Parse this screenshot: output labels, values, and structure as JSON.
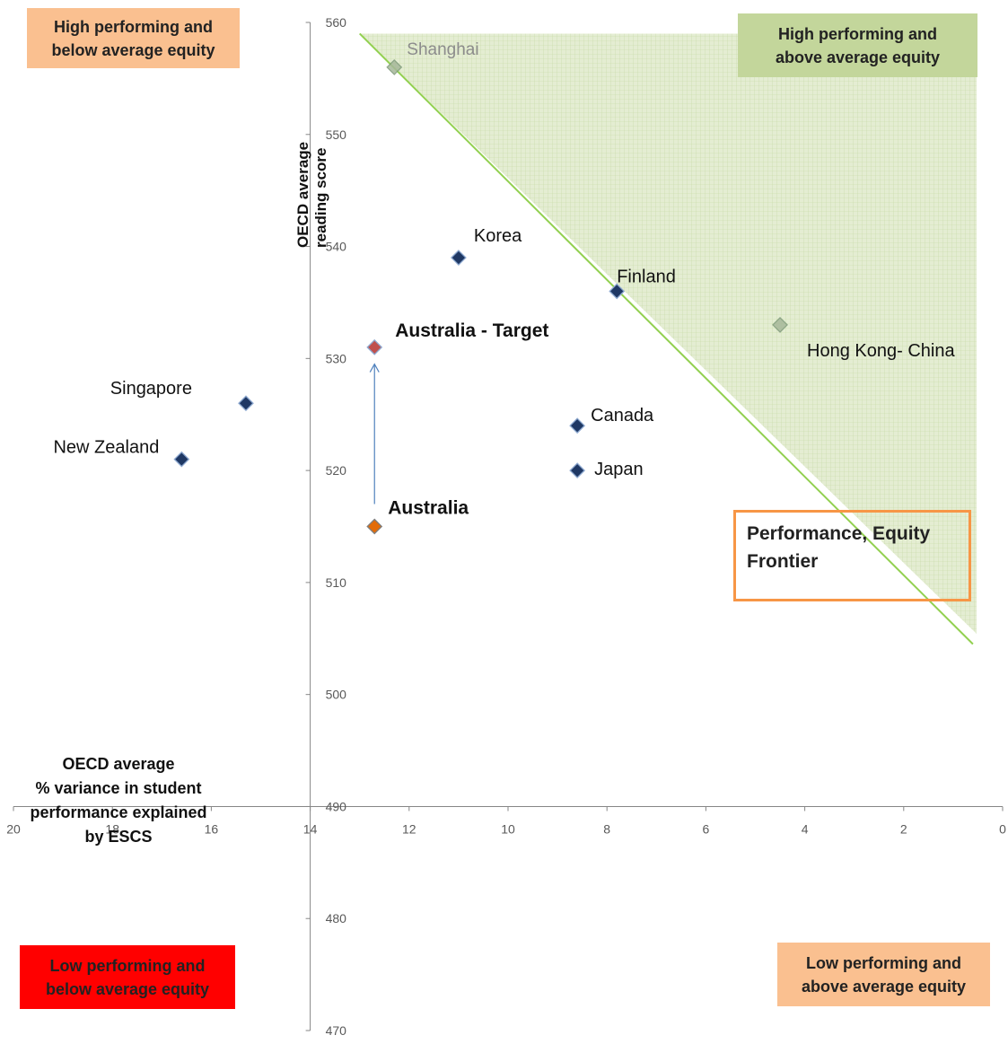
{
  "quadrants": {
    "top_left": "High performing and\nbelow average equity",
    "top_right": "High performing and\nabove average equity",
    "bottom_left": "Low performing and\nbelow average equity",
    "bottom_right": "Low performing and\nabove average equity"
  },
  "frontier_label": "Performance, Equity\nFrontier",
  "colors": {
    "point": "#1f3864",
    "australia": "#e36c09",
    "australia_target": "#c0504d",
    "frontier_line": "#92d050",
    "region_fill": "#d7e4bd",
    "frontier_box_border": "#f79646",
    "arrow": "#4f81bd"
  },
  "chart_data": {
    "type": "scatter",
    "xlabel": "OECD average\n% variance in student\nperformance explained\nby ESCS",
    "ylabel": "OECD average\nreading score",
    "xlim": [
      20,
      0
    ],
    "ylim": [
      470,
      560
    ],
    "x_reversed": true,
    "x_ticks": [
      20,
      18,
      16,
      14,
      12,
      10,
      8,
      6,
      4,
      2,
      0
    ],
    "y_ticks": [
      470,
      480,
      490,
      500,
      510,
      520,
      530,
      540,
      550,
      560
    ],
    "x_axis_crosses_y": 490,
    "y_axis_crosses_x": 14,
    "points": [
      {
        "label": "Shanghai",
        "x": 12.3,
        "y": 556,
        "style": "faded"
      },
      {
        "label": "Korea",
        "x": 11.0,
        "y": 539,
        "style": "normal"
      },
      {
        "label": "Finland",
        "x": 7.8,
        "y": 536,
        "style": "normal"
      },
      {
        "label": "Hong Kong- China",
        "x": 4.5,
        "y": 533,
        "style": "faded"
      },
      {
        "label": "Australia - Target",
        "x": 12.7,
        "y": 531,
        "style": "target"
      },
      {
        "label": "Singapore",
        "x": 15.3,
        "y": 526,
        "style": "normal"
      },
      {
        "label": "Canada",
        "x": 8.6,
        "y": 524,
        "style": "normal"
      },
      {
        "label": "New Zealand",
        "x": 16.6,
        "y": 521,
        "style": "normal"
      },
      {
        "label": "Japan",
        "x": 8.6,
        "y": 520,
        "style": "normal"
      },
      {
        "label": "Australia",
        "x": 12.7,
        "y": 515,
        "style": "australia"
      }
    ],
    "frontier": {
      "x": [
        13.0,
        0.6
      ],
      "y": [
        559,
        504.5
      ]
    },
    "arrow": {
      "from": {
        "x": 12.7,
        "y": 517
      },
      "to": {
        "x": 12.7,
        "y": 529.5
      }
    }
  }
}
